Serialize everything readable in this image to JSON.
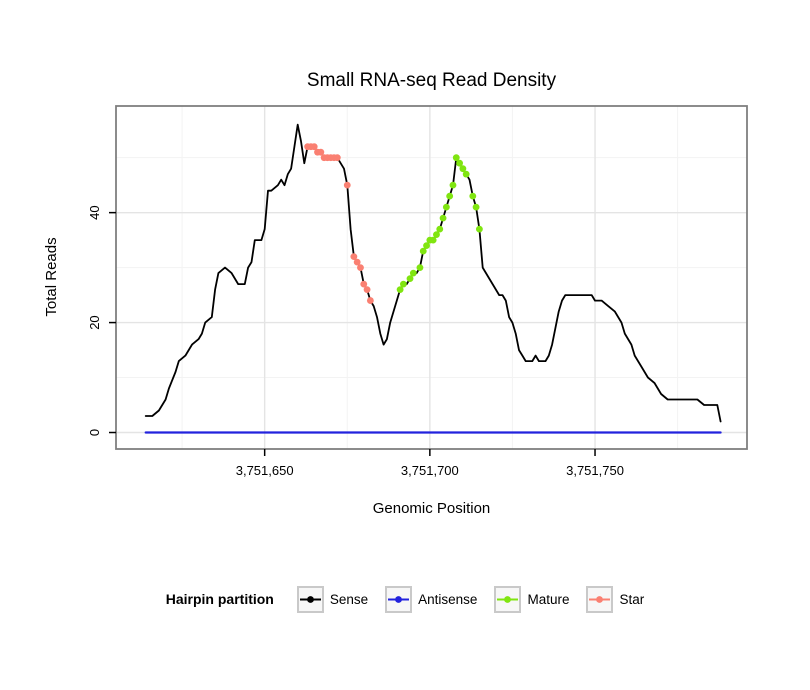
{
  "title": "Small RNA-seq Read Density",
  "x_axis": {
    "label": "Genomic Position",
    "tick_labels": [
      "3,751,650",
      "3,751,700",
      "3,751,750"
    ]
  },
  "y_axis": {
    "label": "Total Reads",
    "tick_labels": [
      "0",
      "20",
      "40"
    ]
  },
  "legend": {
    "title": "Hairpin partition",
    "entries": [
      {
        "label": "Sense",
        "color": "#000000"
      },
      {
        "label": "Antisense",
        "color": "#2222DD"
      },
      {
        "label": "Mature",
        "color": "#80E510"
      },
      {
        "label": "Star",
        "color": "#FA8072"
      }
    ]
  },
  "chart_data": {
    "type": "line",
    "title": "Small RNA-seq Read Density",
    "xlabel": "Genomic Position",
    "ylabel": "Total Reads",
    "xlim": [
      3751605,
      3751796
    ],
    "ylim": [
      -3,
      59.4
    ],
    "grid": true,
    "legend_position": "bottom",
    "panel_border_color": "#7f7f7f",
    "grid_major_color": "#e4e4e4",
    "grid_minor_color": "#f3f3f3",
    "x_ticks": [
      {
        "value": 3751650,
        "label": "3,751,650"
      },
      {
        "value": 3751700,
        "label": "3,751,700"
      },
      {
        "value": 3751750,
        "label": "3,751,750"
      }
    ],
    "x_minor": [
      3751625,
      3751675,
      3751725,
      3751775
    ],
    "y_ticks": [
      {
        "value": 0,
        "label": "0"
      },
      {
        "value": 20,
        "label": "20"
      },
      {
        "value": 40,
        "label": "40"
      }
    ],
    "y_minor": [
      10,
      30,
      50
    ],
    "series": [
      {
        "name": "Sense",
        "geom": "line",
        "color": "#000000",
        "width": 1.8,
        "points": [
          [
            3751614,
            3
          ],
          [
            3751616,
            3
          ],
          [
            3751618,
            4
          ],
          [
            3751620,
            6
          ],
          [
            3751621,
            8
          ],
          [
            3751623,
            11
          ],
          [
            3751624,
            13
          ],
          [
            3751626,
            14
          ],
          [
            3751628,
            16
          ],
          [
            3751630,
            17
          ],
          [
            3751631,
            18
          ],
          [
            3751632,
            20
          ],
          [
            3751634,
            21
          ],
          [
            3751635,
            26
          ],
          [
            3751636,
            29
          ],
          [
            3751638,
            30
          ],
          [
            3751640,
            29
          ],
          [
            3751642,
            27
          ],
          [
            3751644,
            27
          ],
          [
            3751645,
            30
          ],
          [
            3751646,
            31
          ],
          [
            3751647,
            35
          ],
          [
            3751649,
            35
          ],
          [
            3751650,
            37
          ],
          [
            3751651,
            44
          ],
          [
            3751652,
            44
          ],
          [
            3751654,
            45
          ],
          [
            3751655,
            46
          ],
          [
            3751656,
            45
          ],
          [
            3751657,
            47
          ],
          [
            3751658,
            48
          ],
          [
            3751659,
            52
          ],
          [
            3751660,
            56
          ],
          [
            3751661,
            53
          ],
          [
            3751662,
            49
          ],
          [
            3751663,
            52
          ],
          [
            3751664,
            52
          ],
          [
            3751665,
            52
          ],
          [
            3751666,
            51
          ],
          [
            3751667,
            51
          ],
          [
            3751668,
            50
          ],
          [
            3751669,
            50
          ],
          [
            3751670,
            50
          ],
          [
            3751671,
            50
          ],
          [
            3751672,
            50
          ],
          [
            3751674,
            48
          ],
          [
            3751675,
            45
          ],
          [
            3751676,
            37
          ],
          [
            3751677,
            32
          ],
          [
            3751678,
            31
          ],
          [
            3751679,
            30
          ],
          [
            3751680,
            27
          ],
          [
            3751681,
            26
          ],
          [
            3751682,
            24
          ],
          [
            3751683,
            23
          ],
          [
            3751684,
            21
          ],
          [
            3751685,
            18
          ],
          [
            3751686,
            16
          ],
          [
            3751687,
            17
          ],
          [
            3751688,
            20
          ],
          [
            3751689,
            22
          ],
          [
            3751690,
            24
          ],
          [
            3751691,
            26
          ],
          [
            3751692,
            27
          ],
          [
            3751693,
            27
          ],
          [
            3751694,
            28
          ],
          [
            3751695,
            29
          ],
          [
            3751696,
            29
          ],
          [
            3751697,
            30
          ],
          [
            3751698,
            33
          ],
          [
            3751699,
            34
          ],
          [
            3751700,
            35
          ],
          [
            3751701,
            35
          ],
          [
            3751702,
            36
          ],
          [
            3751703,
            37
          ],
          [
            3751704,
            39
          ],
          [
            3751705,
            41
          ],
          [
            3751706,
            43
          ],
          [
            3751707,
            45
          ],
          [
            3751708,
            50
          ],
          [
            3751709,
            49
          ],
          [
            3751710,
            48
          ],
          [
            3751711,
            47
          ],
          [
            3751712,
            46
          ],
          [
            3751713,
            43
          ],
          [
            3751714,
            41
          ],
          [
            3751715,
            37
          ],
          [
            3751716,
            30
          ],
          [
            3751717,
            29
          ],
          [
            3751718,
            28
          ],
          [
            3751719,
            27
          ],
          [
            3751720,
            26
          ],
          [
            3751721,
            25
          ],
          [
            3751722,
            25
          ],
          [
            3751723,
            24
          ],
          [
            3751724,
            21
          ],
          [
            3751725,
            20
          ],
          [
            3751726,
            18
          ],
          [
            3751727,
            15
          ],
          [
            3751728,
            14
          ],
          [
            3751729,
            13
          ],
          [
            3751730,
            13
          ],
          [
            3751731,
            13
          ],
          [
            3751732,
            14
          ],
          [
            3751733,
            13
          ],
          [
            3751734,
            13
          ],
          [
            3751735,
            13
          ],
          [
            3751736,
            14
          ],
          [
            3751737,
            16
          ],
          [
            3751738,
            19
          ],
          [
            3751739,
            22
          ],
          [
            3751740,
            24
          ],
          [
            3751741,
            25
          ],
          [
            3751743,
            25
          ],
          [
            3751745,
            25
          ],
          [
            3751747,
            25
          ],
          [
            3751749,
            25
          ],
          [
            3751750,
            24
          ],
          [
            3751752,
            24
          ],
          [
            3751754,
            23
          ],
          [
            3751756,
            22
          ],
          [
            3751757,
            21
          ],
          [
            3751758,
            20
          ],
          [
            3751759,
            18
          ],
          [
            3751760,
            17
          ],
          [
            3751761,
            16
          ],
          [
            3751762,
            14
          ],
          [
            3751764,
            12
          ],
          [
            3751766,
            10
          ],
          [
            3751768,
            9
          ],
          [
            3751770,
            7
          ],
          [
            3751772,
            6
          ],
          [
            3751775,
            6
          ],
          [
            3751778,
            6
          ],
          [
            3751781,
            6
          ],
          [
            3751783,
            5
          ],
          [
            3751785,
            5
          ],
          [
            3751787,
            5
          ],
          [
            3751788,
            2
          ]
        ]
      },
      {
        "name": "Antisense",
        "geom": "line",
        "color": "#2222DD",
        "width": 2.2,
        "points": [
          [
            3751614,
            0
          ],
          [
            3751788,
            0
          ]
        ]
      },
      {
        "name": "Mature",
        "geom": "point",
        "color": "#80E510",
        "radius": 3.4,
        "points": [
          [
            3751691,
            26
          ],
          [
            3751692,
            27
          ],
          [
            3751694,
            28
          ],
          [
            3751695,
            29
          ],
          [
            3751697,
            30
          ],
          [
            3751698,
            33
          ],
          [
            3751699,
            34
          ],
          [
            3751700,
            35
          ],
          [
            3751701,
            35
          ],
          [
            3751702,
            36
          ],
          [
            3751703,
            37
          ],
          [
            3751704,
            39
          ],
          [
            3751705,
            41
          ],
          [
            3751706,
            43
          ],
          [
            3751707,
            45
          ],
          [
            3751708,
            50
          ],
          [
            3751709,
            49
          ],
          [
            3751710,
            48
          ],
          [
            3751711,
            47
          ],
          [
            3751713,
            43
          ],
          [
            3751714,
            41
          ],
          [
            3751715,
            37
          ]
        ]
      },
      {
        "name": "Star",
        "geom": "point",
        "color": "#FA8072",
        "radius": 3.4,
        "points": [
          [
            3751663,
            52
          ],
          [
            3751664,
            52
          ],
          [
            3751665,
            52
          ],
          [
            3751666,
            51
          ],
          [
            3751667,
            51
          ],
          [
            3751668,
            50
          ],
          [
            3751669,
            50
          ],
          [
            3751670,
            50
          ],
          [
            3751671,
            50
          ],
          [
            3751672,
            50
          ],
          [
            3751675,
            45
          ],
          [
            3751677,
            32
          ],
          [
            3751678,
            31
          ],
          [
            3751679,
            30
          ],
          [
            3751680,
            27
          ],
          [
            3751681,
            26
          ],
          [
            3751682,
            24
          ]
        ]
      }
    ]
  }
}
